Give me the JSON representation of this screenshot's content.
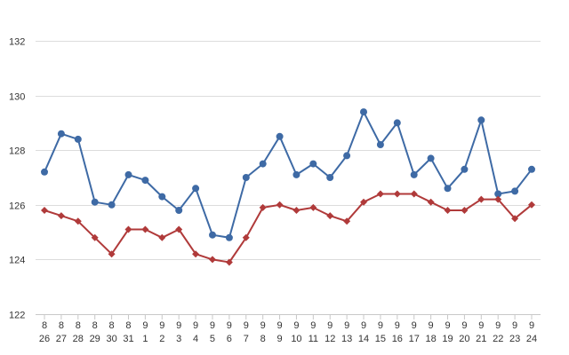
{
  "chart_data": {
    "type": "line",
    "title": "",
    "xlabel": "",
    "ylabel": "",
    "ylim": [
      122,
      132
    ],
    "yticks": [
      122,
      124,
      126,
      128,
      130,
      132
    ],
    "grid": true,
    "x_month_labels": [
      "8",
      "8",
      "8",
      "8",
      "8",
      "8",
      "9",
      "9",
      "9",
      "9",
      "9",
      "9",
      "9",
      "9",
      "9",
      "9",
      "9",
      "9",
      "9",
      "9",
      "9",
      "9",
      "9",
      "9",
      "9",
      "9",
      "9",
      "9",
      "9",
      "9"
    ],
    "x_day_labels": [
      "26",
      "27",
      "28",
      "29",
      "30",
      "31",
      "1",
      "2",
      "3",
      "4",
      "5",
      "6",
      "7",
      "8",
      "9",
      "10",
      "11",
      "12",
      "13",
      "14",
      "15",
      "16",
      "17",
      "18",
      "19",
      "20",
      "21",
      "22",
      "23",
      "24"
    ],
    "series": [
      {
        "color": "#3e6aa5",
        "marker": "circle",
        "values": [
          127.2,
          128.6,
          128.4,
          126.1,
          126.0,
          127.1,
          126.9,
          126.3,
          125.8,
          126.6,
          124.9,
          124.8,
          127.0,
          127.5,
          128.5,
          127.1,
          127.5,
          127.0,
          127.8,
          129.4,
          128.2,
          129.0,
          127.1,
          127.7,
          126.6,
          127.3,
          129.1,
          126.4,
          126.5,
          127.3
        ]
      },
      {
        "color": "#b03a3a",
        "marker": "diamond",
        "values": [
          125.8,
          125.6,
          125.4,
          124.8,
          124.2,
          125.1,
          125.1,
          124.8,
          125.1,
          124.2,
          124.0,
          123.9,
          124.8,
          125.9,
          126.0,
          125.8,
          125.9,
          125.6,
          125.4,
          126.1,
          126.4,
          126.4,
          126.4,
          126.1,
          125.8,
          125.8,
          126.2,
          126.2,
          125.5,
          126.0
        ]
      }
    ]
  }
}
